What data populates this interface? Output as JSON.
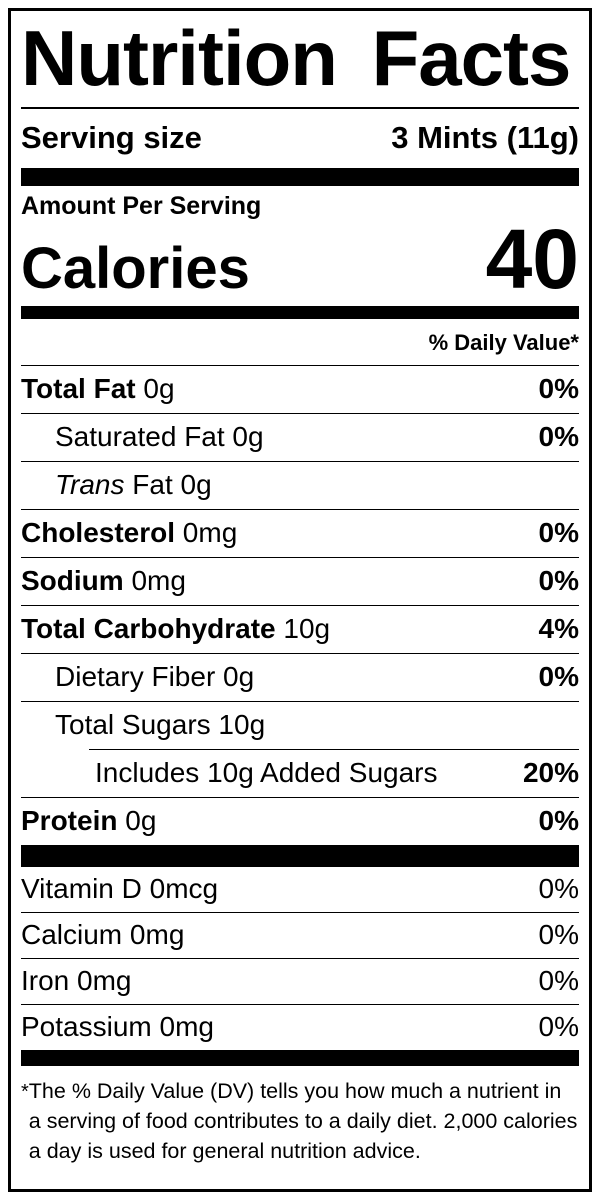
{
  "colors": {
    "text": "#000000",
    "background": "#ffffff",
    "rule": "#000000"
  },
  "label": {
    "title": "Nutrition Facts",
    "serving": {
      "label": "Serving size",
      "value": "3 Mints (11g)"
    },
    "amount_per_serving": "Amount Per Serving",
    "calories": {
      "label": "Calories",
      "value": "40"
    },
    "daily_value_header": "% Daily Value*",
    "nutrients": [
      {
        "name": "Total Fat",
        "amount": "0g",
        "dv": "0%",
        "bold": true,
        "indent": 0
      },
      {
        "name": "Saturated Fat",
        "amount": "0g",
        "dv": "0%",
        "bold": false,
        "indent": 1
      },
      {
        "name_italic": "Trans",
        "name": "Fat 0g",
        "amount": "",
        "dv": "",
        "bold": false,
        "indent": 1
      },
      {
        "name": "Cholesterol",
        "amount": "0mg",
        "dv": "0%",
        "bold": true,
        "indent": 0
      },
      {
        "name": "Sodium",
        "amount": "0mg",
        "dv": "0%",
        "bold": true,
        "indent": 0
      },
      {
        "name": "Total Carbohydrate",
        "amount": "10g",
        "dv": "4%",
        "bold": true,
        "indent": 0
      },
      {
        "name": "Dietary Fiber",
        "amount": "0g",
        "dv": "0%",
        "bold": false,
        "indent": 1
      },
      {
        "name": "Total Sugars",
        "amount": "10g",
        "dv": "",
        "bold": false,
        "indent": 1
      },
      {
        "name": "Includes 10g Added Sugars",
        "amount": "",
        "dv": "20%",
        "bold": false,
        "indent": 2
      },
      {
        "name": "Protein",
        "amount": "0g",
        "dv": "0%",
        "bold": true,
        "indent": 0
      }
    ],
    "vitamins": [
      {
        "name": "Vitamin D",
        "amount": "0mcg",
        "dv": "0%"
      },
      {
        "name": "Calcium",
        "amount": "0mg",
        "dv": "0%"
      },
      {
        "name": "Iron",
        "amount": "0mg",
        "dv": "0%"
      },
      {
        "name": "Potassium",
        "amount": "0mg",
        "dv": "0%"
      }
    ],
    "footnote_marker": "*",
    "footnote": "The % Daily Value (DV) tells you how much a nutrient in a serving of food contributes to a daily diet. 2,000 calories a day is used for general nutrition advice."
  }
}
